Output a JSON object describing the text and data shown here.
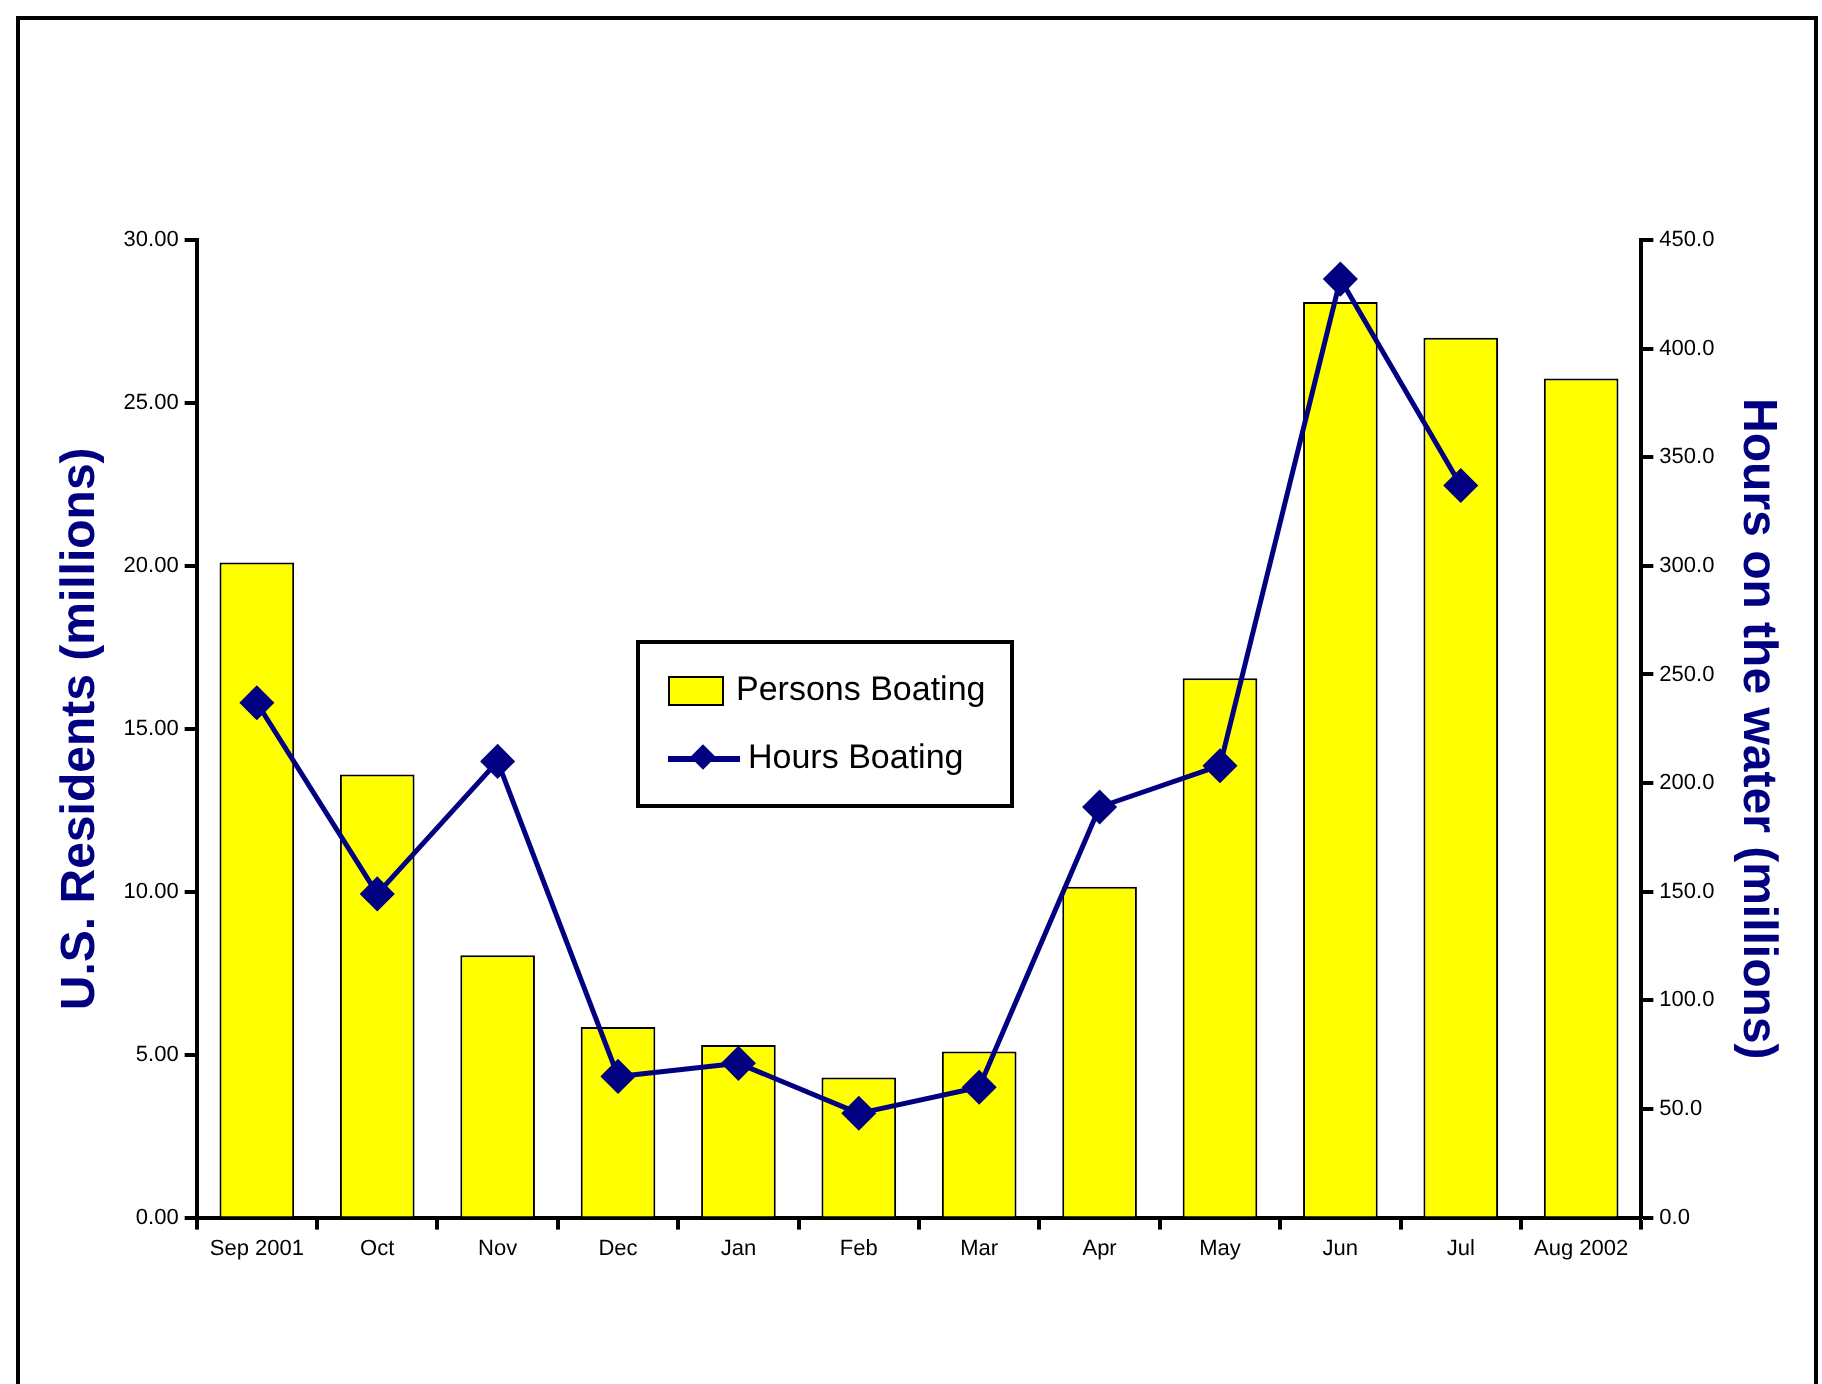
{
  "chart_data": {
    "type": "bar",
    "categories": [
      "Sep 2001",
      "Oct",
      "Nov",
      "Dec",
      "Jan",
      "Feb",
      "Mar",
      "Apr",
      "May",
      "Jun",
      "Jul",
      "Aug 2002"
    ],
    "series": [
      {
        "name": "Persons Boating",
        "color": "#ffff00",
        "values": [
          20.1,
          13.6,
          8.05,
          5.85,
          5.3,
          4.3,
          5.1,
          10.15,
          16.55,
          28.1,
          27.0,
          25.75
        ]
      },
      {
        "name": "Hours Boating",
        "type": "line",
        "axis": "y2",
        "color": "#000080",
        "marker": "diamond",
        "values": [
          237,
          149,
          210,
          65,
          71,
          48,
          60,
          189,
          208,
          432,
          337,
          null
        ]
      }
    ],
    "ylabel": "U.S. Residents (millions)",
    "y2label": "Hours on the water (millions)",
    "ylim": [
      0,
      30
    ],
    "yticks": [
      {
        "value": 0,
        "label": "0.00"
      },
      {
        "value": 5,
        "label": "5.00"
      },
      {
        "value": 10,
        "label": "10.00"
      },
      {
        "value": 15,
        "label": "15.00"
      },
      {
        "value": 20,
        "label": "20.00"
      },
      {
        "value": 25,
        "label": "25.00"
      },
      {
        "value": 30,
        "label": "30.00"
      }
    ],
    "y2lim": [
      0,
      450
    ],
    "y2ticks": [
      {
        "value": 0,
        "label": "0.0"
      },
      {
        "value": 50,
        "label": "50.0"
      },
      {
        "value": 100,
        "label": "100.0"
      },
      {
        "value": 150,
        "label": "150.0"
      },
      {
        "value": 200,
        "label": "200.0"
      },
      {
        "value": 250,
        "label": "250.0"
      },
      {
        "value": 300,
        "label": "300.0"
      },
      {
        "value": 350,
        "label": "350.0"
      },
      {
        "value": 400,
        "label": "400.0"
      },
      {
        "value": 450,
        "label": "450.0"
      }
    ],
    "grid": false,
    "legend": "center"
  }
}
